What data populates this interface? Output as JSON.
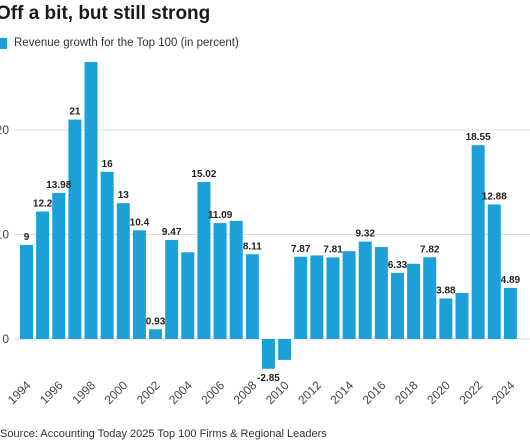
{
  "chart_data": {
    "type": "bar",
    "title": "Off a bit, but still strong",
    "legend_position": "top-left",
    "grid": true,
    "colors": {
      "bar": "#1ba1d7",
      "grid": "#dddddd",
      "text": "#222222"
    },
    "series": [
      {
        "name": "Revenue growth for the Top 100 (in percent)",
        "values": [
          9,
          12.2,
          13.98,
          21,
          26.5,
          16,
          13,
          10.4,
          0.93,
          9.47,
          8.3,
          15.02,
          11.09,
          11.3,
          8.11,
          -2.85,
          -2.0,
          7.87,
          8.0,
          7.81,
          8.4,
          9.32,
          8.8,
          6.33,
          7.2,
          7.82,
          3.88,
          4.4,
          18.55,
          12.88,
          4.89
        ]
      }
    ],
    "x": [
      1994,
      1995,
      1996,
      1997,
      1998,
      1999,
      2000,
      2001,
      2002,
      2003,
      2004,
      2005,
      2006,
      2007,
      2008,
      2009,
      2010,
      2011,
      2012,
      2013,
      2014,
      2015,
      2016,
      2017,
      2018,
      2019,
      2020,
      2021,
      2022,
      2023,
      2024
    ],
    "data_labels": [
      {
        "year": 1994,
        "text": "9"
      },
      {
        "year": 1995,
        "text": "12.2"
      },
      {
        "year": 1996,
        "text": "13.98"
      },
      {
        "year": 1997,
        "text": "21"
      },
      {
        "year": 1999,
        "text": "16"
      },
      {
        "year": 2000,
        "text": "13"
      },
      {
        "year": 2001,
        "text": "10.4"
      },
      {
        "year": 2002,
        "text": "0.93"
      },
      {
        "year": 2003,
        "text": "9.47"
      },
      {
        "year": 2005,
        "text": "15.02"
      },
      {
        "year": 2006,
        "text": "11.09"
      },
      {
        "year": 2008,
        "text": "8.11"
      },
      {
        "year": 2009,
        "text": "-2.85"
      },
      {
        "year": 2011,
        "text": "7.87"
      },
      {
        "year": 2013,
        "text": "7.81"
      },
      {
        "year": 2015,
        "text": "9.32"
      },
      {
        "year": 2017,
        "text": "6.33"
      },
      {
        "year": 2019,
        "text": "7.82"
      },
      {
        "year": 2020,
        "text": "3.88"
      },
      {
        "year": 2022,
        "text": "18.55"
      },
      {
        "year": 2023,
        "text": "12.88"
      },
      {
        "year": 2024,
        "text": "4.89"
      }
    ],
    "y_ticks": [
      0,
      10,
      20
    ],
    "y_tick_labels": [
      "0",
      "10",
      "20"
    ],
    "x_tick_labels": [
      "1994",
      "1996",
      "1998",
      "2000",
      "2002",
      "2004",
      "2006",
      "2008",
      "2010",
      "2012",
      "2014",
      "2016",
      "2018",
      "2020",
      "2022",
      "2024"
    ],
    "ylim": [
      -5,
      26.5
    ],
    "source": "Source: Accounting Today 2025 Top 100 Firms & Regional Leaders"
  }
}
